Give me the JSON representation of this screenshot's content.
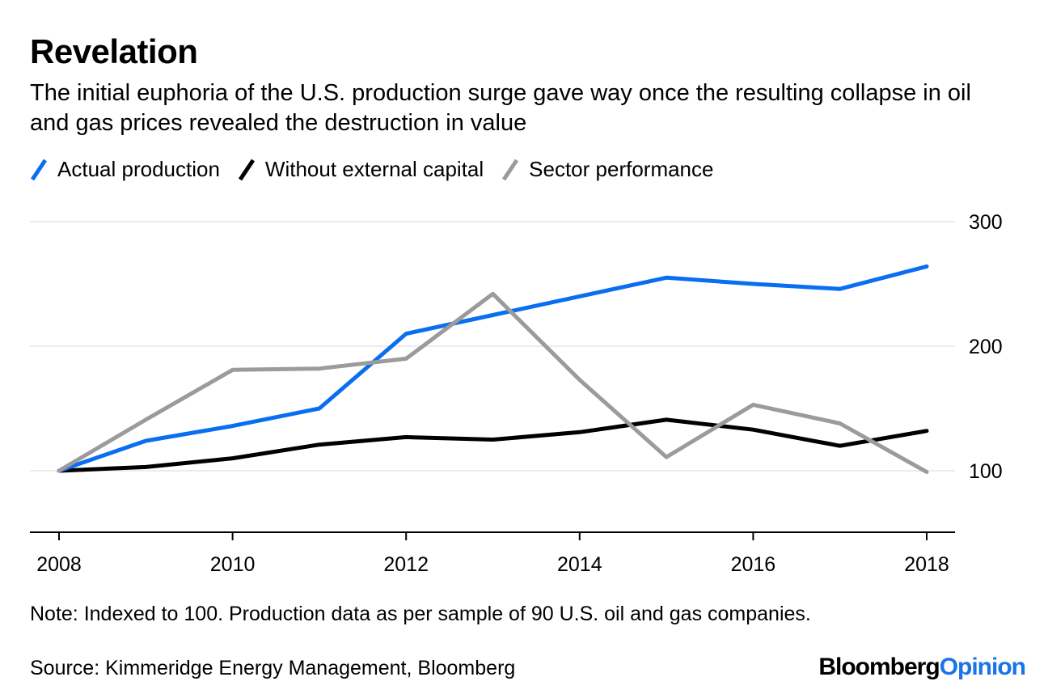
{
  "header": {
    "title": "Revelation",
    "subtitle": "The initial euphoria of the U.S. production surge gave way once the resulting collapse in oil and gas prices revealed the destruction in value"
  },
  "footer": {
    "note": "Note: Indexed to 100. Production data as per sample of 90 U.S. oil and gas companies.",
    "source": "Source: Kimmeridge Energy Management, Bloomberg",
    "brand_part1": "Bloomberg",
    "brand_part2": "Opinion"
  },
  "colors": {
    "actual_production": "#0a6ef0",
    "without_external_capital": "#000000",
    "sector_performance": "#9b9b9b",
    "gridline": "#ececec",
    "brand_accent": "#1a73e8"
  },
  "chart_data": {
    "type": "line",
    "title": "Revelation",
    "subtitle": "The initial euphoria of the U.S. production surge gave way once the resulting collapse in oil and gas prices revealed the destruction in value",
    "xlabel": "",
    "ylabel": "",
    "x": [
      2008,
      2009,
      2010,
      2011,
      2012,
      2013,
      2014,
      2015,
      2016,
      2017,
      2018
    ],
    "xticks": [
      "2008",
      "2010",
      "2012",
      "2014",
      "2016",
      "2018"
    ],
    "xtick_values": [
      2008,
      2010,
      2012,
      2014,
      2016,
      2018
    ],
    "yticks": [
      "100",
      "200",
      "300"
    ],
    "ytick_values": [
      100,
      200,
      300
    ],
    "ylim": [
      52,
      300
    ],
    "xlim": [
      2007.83,
      2018.33
    ],
    "grid": true,
    "y_axis_side": "right",
    "legend_position": "top-left",
    "series": [
      {
        "name": "Actual production",
        "color": "#0a6ef0",
        "values": [
          100,
          124,
          136,
          150,
          210,
          225,
          240,
          255,
          250,
          246,
          264
        ]
      },
      {
        "name": "Without external capital",
        "color": "#000000",
        "values": [
          100,
          103,
          110,
          121,
          127,
          125,
          131,
          141,
          133,
          120,
          132
        ]
      },
      {
        "name": "Sector performance",
        "color": "#9b9b9b",
        "values": [
          100,
          141,
          181,
          182,
          190,
          242,
          173,
          111,
          153,
          138,
          99
        ]
      }
    ]
  }
}
